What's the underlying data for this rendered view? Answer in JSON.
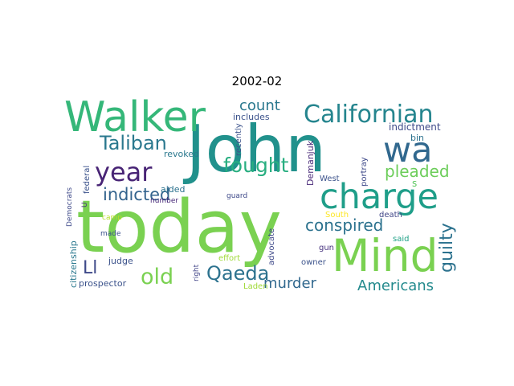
{
  "title": "2002-02",
  "words": [
    {
      "text": "today",
      "color": "#7ad151",
      "vertical": false
    },
    {
      "text": "John",
      "color": "#21918c",
      "vertical": false
    },
    {
      "text": "Walker",
      "color": "#35b779",
      "vertical": false
    },
    {
      "text": "Mind",
      "color": "#7ad151",
      "vertical": false
    },
    {
      "text": "charge",
      "color": "#1f9e89",
      "vertical": false
    },
    {
      "text": "wa",
      "color": "#31688e",
      "vertical": false
    },
    {
      "text": "Californian",
      "color": "#25858e",
      "vertical": false
    },
    {
      "text": "Taliban",
      "color": "#2a788e",
      "vertical": false
    },
    {
      "text": "year",
      "color": "#482475",
      "vertical": false
    },
    {
      "text": "fought",
      "color": "#28ae80",
      "vertical": false
    },
    {
      "text": "indicted",
      "color": "#33638d",
      "vertical": false
    },
    {
      "text": "count",
      "color": "#2a788e",
      "vertical": false
    },
    {
      "text": "pleaded",
      "color": "#6ccd5a",
      "vertical": false
    },
    {
      "text": "conspired",
      "color": "#2c728e",
      "vertical": false
    },
    {
      "text": "guilty",
      "color": "#2c728e",
      "vertical": true
    },
    {
      "text": "old",
      "color": "#7ad151",
      "vertical": false
    },
    {
      "text": "Qaeda",
      "color": "#2c728e",
      "vertical": false
    },
    {
      "text": "Ll",
      "color": "#3e4989",
      "vertical": false
    },
    {
      "text": "murder",
      "color": "#31688e",
      "vertical": false
    },
    {
      "text": "Americans",
      "color": "#238a8d",
      "vertical": false
    },
    {
      "text": "indictment",
      "color": "#3e4989",
      "vertical": false
    },
    {
      "text": "includes",
      "color": "#3b528b",
      "vertical": false
    },
    {
      "text": "revoked",
      "color": "#2a788e",
      "vertical": false
    },
    {
      "text": "aided",
      "color": "#2c728e",
      "vertical": false
    },
    {
      "text": "recently",
      "color": "#3b528b",
      "vertical": true
    },
    {
      "text": "Demanjuk",
      "color": "#482878",
      "vertical": true
    },
    {
      "text": "portray",
      "color": "#3e4989",
      "vertical": true
    },
    {
      "text": "bin",
      "color": "#2c728e",
      "vertical": false
    },
    {
      "text": "West",
      "color": "#3b528b",
      "vertical": false
    },
    {
      "text": "federal",
      "color": "#3b528b",
      "vertical": true
    },
    {
      "text": "U",
      "color": "#46327e",
      "vertical": true
    },
    {
      "text": "s",
      "color": "#5ec962",
      "vertical": false
    },
    {
      "text": "number",
      "color": "#482878",
      "vertical": false
    },
    {
      "text": "guard",
      "color": "#3e4989",
      "vertical": false
    },
    {
      "text": "camp",
      "color": "#b8de29",
      "vertical": false
    },
    {
      "text": "South",
      "color": "#fde725",
      "vertical": false
    },
    {
      "text": "death",
      "color": "#404688",
      "vertical": false
    },
    {
      "text": "Democrats",
      "color": "#3e4989",
      "vertical": true
    },
    {
      "text": "made",
      "color": "#3b528b",
      "vertical": false
    },
    {
      "text": "advocate",
      "color": "#3e4989",
      "vertical": true
    },
    {
      "text": "said",
      "color": "#1fa187",
      "vertical": false
    },
    {
      "text": "gun",
      "color": "#46327e",
      "vertical": false
    },
    {
      "text": "citizenship",
      "color": "#2a788e",
      "vertical": true
    },
    {
      "text": "judge",
      "color": "#3b528b",
      "vertical": false
    },
    {
      "text": "effort",
      "color": "#a0da39",
      "vertical": false
    },
    {
      "text": "owner",
      "color": "#3b528b",
      "vertical": false
    },
    {
      "text": "right",
      "color": "#414487",
      "vertical": true
    },
    {
      "text": "prospector",
      "color": "#3b528b",
      "vertical": false
    },
    {
      "text": "Laden",
      "color": "#a0da39",
      "vertical": false
    }
  ]
}
